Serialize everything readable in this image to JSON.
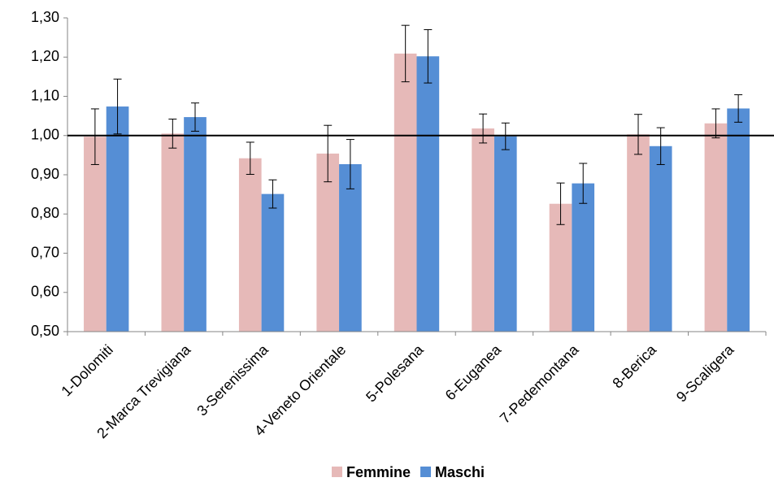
{
  "chart_data": {
    "type": "bar",
    "categories": [
      "1-Dolomiti",
      "2-Marca Trevigiana",
      "3-Serenissima",
      "4-Veneto Orientale",
      "5-Polesana",
      "6-Euganea",
      "7-Pedemontana",
      "8-Berica",
      "9-Scaligera"
    ],
    "series": [
      {
        "name": "Femmine",
        "color": "#e6b9b8",
        "values": [
          0.997,
          1.005,
          0.942,
          0.954,
          1.209,
          1.018,
          0.826,
          1.003,
          1.031
        ],
        "errors": [
          0.071,
          0.037,
          0.041,
          0.072,
          0.072,
          0.037,
          0.053,
          0.051,
          0.037
        ]
      },
      {
        "name": "Maschi",
        "color": "#558ed5",
        "values": [
          1.074,
          1.047,
          0.851,
          0.927,
          1.202,
          0.998,
          0.878,
          0.973,
          1.069
        ],
        "errors": [
          0.07,
          0.036,
          0.036,
          0.063,
          0.068,
          0.034,
          0.051,
          0.047,
          0.035
        ]
      }
    ],
    "reference_line": 1,
    "ylim": [
      0.5,
      1.3
    ],
    "yticks": [
      {
        "value": 0.5,
        "label": "0,50"
      },
      {
        "value": 0.6,
        "label": "0,60"
      },
      {
        "value": 0.7,
        "label": "0,70"
      },
      {
        "value": 0.8,
        "label": "0,80"
      },
      {
        "value": 0.9,
        "label": "0,90"
      },
      {
        "value": 1.0,
        "label": "1,00"
      },
      {
        "value": 1.1,
        "label": "1,10"
      },
      {
        "value": 1.2,
        "label": "1,20"
      },
      {
        "value": 1.3,
        "label": "1,30"
      }
    ],
    "legend": "bottom"
  }
}
